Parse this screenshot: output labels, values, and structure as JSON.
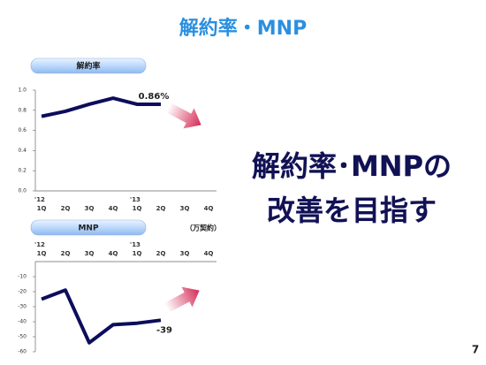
{
  "title": "解約率・MNP",
  "message": [
    "解約率･MNPの",
    "改善を目指す"
  ],
  "page_number": "7",
  "chart_data": [
    {
      "type": "line",
      "title": "解約率",
      "categories": [
        "1Q",
        "2Q",
        "3Q",
        "4Q",
        "1Q",
        "2Q",
        "3Q",
        "4Q"
      ],
      "year_labels": [
        "'12",
        null,
        null,
        null,
        "'13",
        null,
        null,
        null
      ],
      "values": [
        0.74,
        0.79,
        0.86,
        0.92,
        0.86,
        0.86,
        null,
        null
      ],
      "value_labels": [
        null,
        null,
        null,
        null,
        null,
        "0.86%",
        null,
        null
      ],
      "color": "#0d0d5c",
      "ylim": [
        0,
        1.0
      ],
      "yticks": [
        {
          "value": 0,
          "label": "0.0"
        },
        0.2,
        0.4,
        0.6,
        0.8,
        {
          "value": 1.0,
          "label": "1.0"
        }
      ],
      "xaxis_position": "bottom"
    },
    {
      "type": "line",
      "title": "MNP",
      "unit": "（万契約）",
      "categories": [
        "1Q",
        "2Q",
        "3Q",
        "4Q",
        "1Q",
        "2Q",
        "3Q",
        "4Q"
      ],
      "year_labels": [
        "'12",
        null,
        null,
        null,
        "'13",
        null,
        null,
        null
      ],
      "values": [
        -25,
        -19,
        -54,
        -42,
        -41,
        -39,
        null,
        null
      ],
      "value_labels": [
        null,
        null,
        null,
        null,
        null,
        "-39",
        null,
        null
      ],
      "color": "#0d0d5c",
      "ylim": [
        -60,
        0
      ],
      "yticks": [
        -60,
        -50,
        -40,
        -30,
        -20,
        -10
      ],
      "xaxis_position": "top"
    }
  ]
}
